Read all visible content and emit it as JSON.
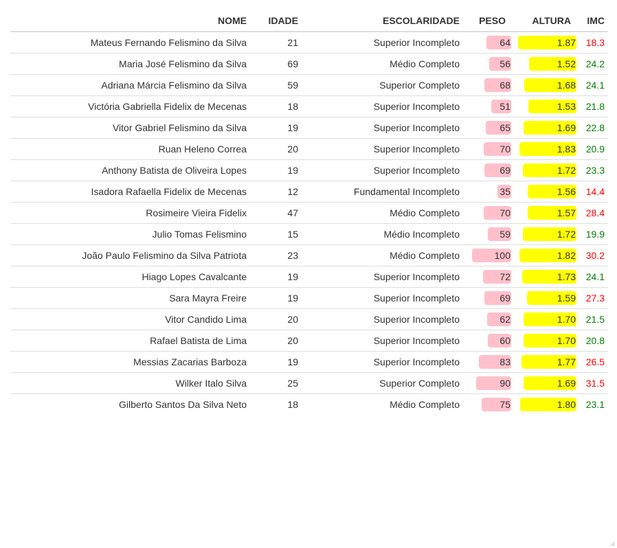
{
  "headers": {
    "nome": "NOME",
    "idade": "IDADE",
    "escolaridade": "ESCOLARIDADE",
    "peso": "PESO",
    "altura": "ALTURA",
    "imc": "IMC"
  },
  "colors": {
    "peso_bar": "#ffc0cb",
    "altura_bar": "#ffff00",
    "imc_high": "#ff0000",
    "imc_normal": "#008000"
  },
  "scales": {
    "peso_max": 100,
    "altura_max": 1.87
  },
  "rows": [
    {
      "nome": "Mateus Fernando Felismino da Silva",
      "idade": "21",
      "escolaridade": "Superior Incompleto",
      "peso": "64",
      "altura": "1.87",
      "imc": "18.3",
      "imc_status": "high"
    },
    {
      "nome": "Maria José Felismino da Silva",
      "idade": "69",
      "escolaridade": "Médio Completo",
      "peso": "56",
      "altura": "1.52",
      "imc": "24.2",
      "imc_status": "normal"
    },
    {
      "nome": "Adriana Márcia Felismino da Silva",
      "idade": "59",
      "escolaridade": "Superior Completo",
      "peso": "68",
      "altura": "1.68",
      "imc": "24.1",
      "imc_status": "normal"
    },
    {
      "nome": "Victória Gabriella Fidelix de Mecenas",
      "idade": "18",
      "escolaridade": "Superior Incompleto",
      "peso": "51",
      "altura": "1.53",
      "imc": "21.8",
      "imc_status": "normal"
    },
    {
      "nome": "Vitor Gabriel Felismino da Silva",
      "idade": "19",
      "escolaridade": "Superior Incompleto",
      "peso": "65",
      "altura": "1.69",
      "imc": "22.8",
      "imc_status": "normal"
    },
    {
      "nome": "Ruan Heleno Correa",
      "idade": "20",
      "escolaridade": "Superior Incompleto",
      "peso": "70",
      "altura": "1.83",
      "imc": "20.9",
      "imc_status": "normal"
    },
    {
      "nome": "Anthony Batista de Oliveira Lopes",
      "idade": "19",
      "escolaridade": "Superior Incompleto",
      "peso": "69",
      "altura": "1.72",
      "imc": "23.3",
      "imc_status": "normal"
    },
    {
      "nome": "Isadora Rafaella Fidelix de Mecenas",
      "idade": "12",
      "escolaridade": "Fundamental Incompleto",
      "peso": "35",
      "altura": "1.56",
      "imc": "14.4",
      "imc_status": "high"
    },
    {
      "nome": "Rosimeire Vieira Fidelix",
      "idade": "47",
      "escolaridade": "Médio Completo",
      "peso": "70",
      "altura": "1.57",
      "imc": "28.4",
      "imc_status": "high"
    },
    {
      "nome": "Julio Tomas Felismino",
      "idade": "15",
      "escolaridade": "Médio Incompleto",
      "peso": "59",
      "altura": "1.72",
      "imc": "19.9",
      "imc_status": "normal"
    },
    {
      "nome": "João Paulo Felismino da Silva Patriota",
      "idade": "23",
      "escolaridade": "Médio Completo",
      "peso": "100",
      "altura": "1.82",
      "imc": "30.2",
      "imc_status": "high"
    },
    {
      "nome": "Hiago Lopes Cavalcante",
      "idade": "19",
      "escolaridade": "Superior Incompleto",
      "peso": "72",
      "altura": "1.73",
      "imc": "24.1",
      "imc_status": "normal"
    },
    {
      "nome": "Sara Mayra Freire",
      "idade": "19",
      "escolaridade": "Superior Incompleto",
      "peso": "69",
      "altura": "1.59",
      "imc": "27.3",
      "imc_status": "high"
    },
    {
      "nome": "Vitor Candido Lima",
      "idade": "20",
      "escolaridade": "Superior Incompleto",
      "peso": "62",
      "altura": "1.70",
      "imc": "21.5",
      "imc_status": "normal"
    },
    {
      "nome": "Rafael Batista de Lima",
      "idade": "20",
      "escolaridade": "Superior Incompleto",
      "peso": "60",
      "altura": "1.70",
      "imc": "20.8",
      "imc_status": "normal"
    },
    {
      "nome": "Messias Zacarias Barboza",
      "idade": "19",
      "escolaridade": "Superior Incompleto",
      "peso": "83",
      "altura": "1.77",
      "imc": "26.5",
      "imc_status": "high"
    },
    {
      "nome": "Wilker Italo Silva",
      "idade": "25",
      "escolaridade": "Superior Completo",
      "peso": "90",
      "altura": "1.69",
      "imc": "31.5",
      "imc_status": "high"
    },
    {
      "nome": "Gilberto Santos Da Silva Neto",
      "idade": "18",
      "escolaridade": "Médio Completo",
      "peso": "75",
      "altura": "1.80",
      "imc": "23.1",
      "imc_status": "normal"
    }
  ]
}
